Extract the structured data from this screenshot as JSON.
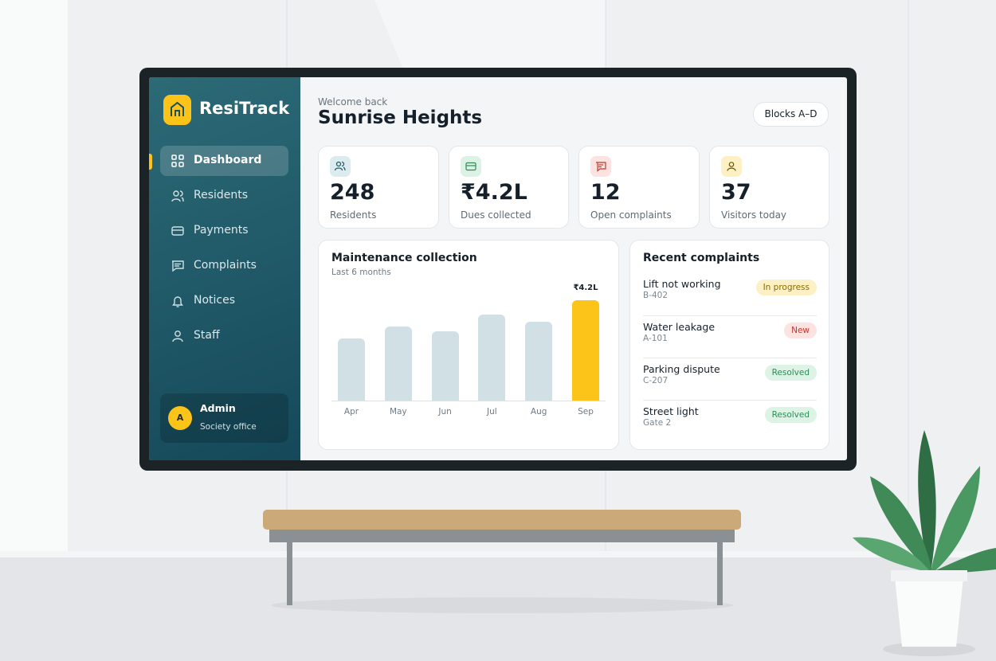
{
  "app": {
    "brand": "ResiTrack",
    "nav": [
      "Dashboard",
      "Residents",
      "Payments",
      "Complaints",
      "Notices",
      "Staff"
    ],
    "user": {
      "initial": "A",
      "name": "Admin",
      "role": "Society office"
    }
  },
  "header": {
    "greeting": "Welcome back",
    "title": "Sunrise Heights",
    "scope": "Blocks A–D"
  },
  "stats": [
    {
      "value": 248,
      "label": "Residents"
    },
    {
      "value": "₹4.2L",
      "label": "Dues collected"
    },
    {
      "value": 12,
      "label": "Open complaints"
    },
    {
      "value": 37,
      "label": "Visitors today"
    }
  ],
  "chart_data": {
    "type": "bar",
    "title": "Maintenance collection",
    "subtitle": "Last 6 months",
    "categories": [
      "Apr",
      "May",
      "Jun",
      "Jul",
      "Aug",
      "Sep"
    ],
    "values": [
      2.6,
      3.1,
      2.9,
      3.6,
      3.3,
      4.2
    ],
    "value_labels": [
      null,
      null,
      null,
      null,
      null,
      "₹4.2L"
    ],
    "colors": [
      "#d1e0e4",
      "#d1e0e4",
      "#d1e0e4",
      "#d1e0e4",
      "#d1e0e4",
      "#fcc419"
    ],
    "ylim": [
      0,
      4.2
    ]
  },
  "complaints": {
    "title": "Recent complaints",
    "items": [
      {
        "title": "Lift not working",
        "location": "B-402",
        "status": "In progress"
      },
      {
        "title": "Water leakage",
        "location": "A-101",
        "status": "New"
      },
      {
        "title": "Parking dispute",
        "location": "C-207",
        "status": "Resolved"
      },
      {
        "title": "Street light",
        "location": "Gate 2",
        "status": "Resolved"
      }
    ]
  }
}
